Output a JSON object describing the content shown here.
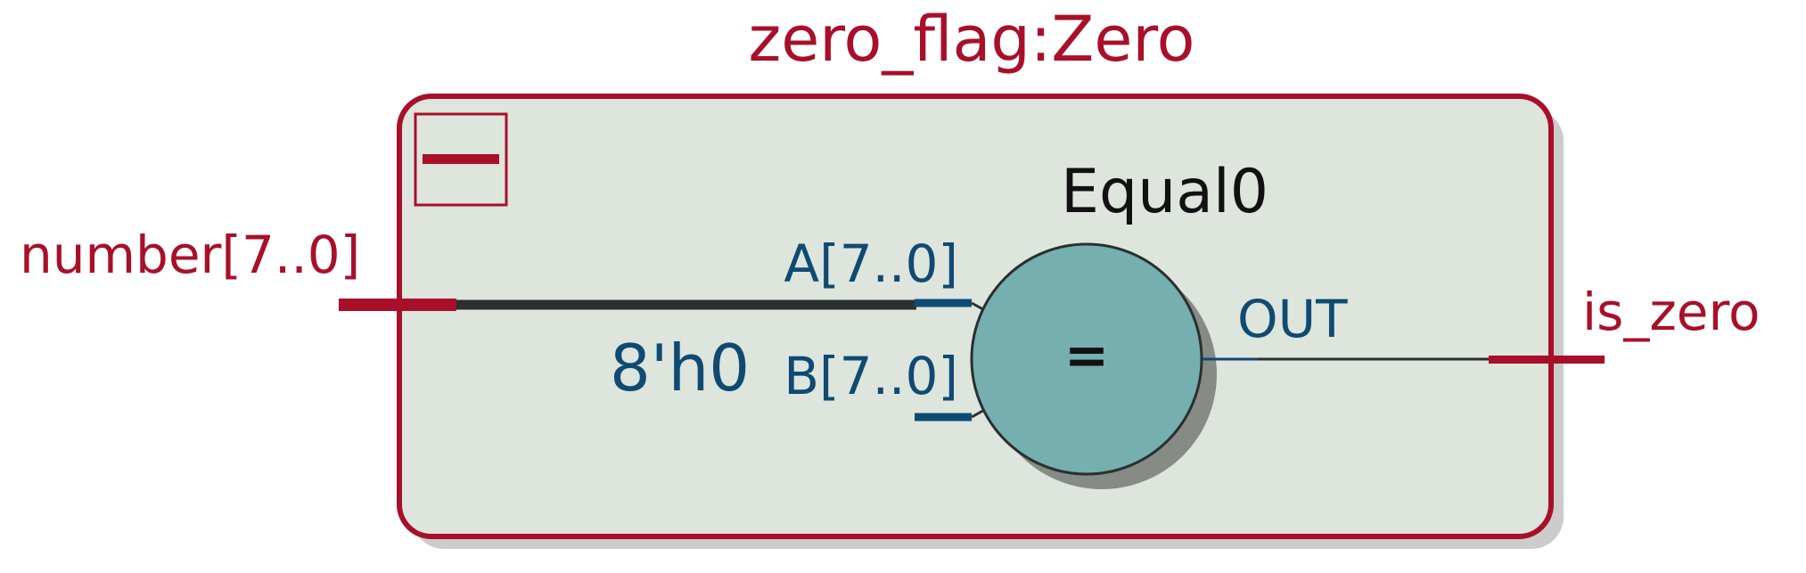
{
  "module": {
    "title": "zero_flag:Zero"
  },
  "ports": {
    "input": "number[7..0]",
    "output": "is_zero"
  },
  "comparator": {
    "name": "Equal0",
    "symbol": "=",
    "pin_a": "A[7..0]",
    "pin_b": "B[7..0]",
    "pin_out": "OUT",
    "constant": "8'h0"
  },
  "colors": {
    "border": "#a8102a",
    "block_fill": "#dde5dd",
    "node_fill": "#75afaf",
    "pin_blue": "#0f4a72",
    "wire": "#2b2f2f",
    "shadow": "#cccccc"
  }
}
